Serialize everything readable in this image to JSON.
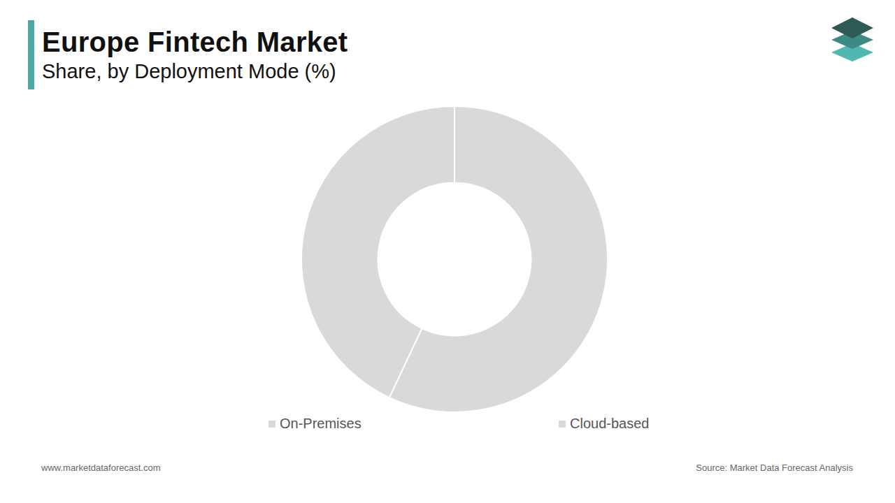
{
  "chart_data": {
    "type": "doughnut",
    "title": "Europe Fintech Market",
    "subtitle": "Share, by Deployment Mode (%)",
    "categories": [
      "On-Premises",
      "Cloud-based"
    ],
    "values": [
      57,
      43
    ],
    "colors": [
      "#d9d9d9",
      "#d9d9d9"
    ],
    "legend": "bottom",
    "data_labels": false
  },
  "website": "www.marketdataforecast.com",
  "source": "Source: Market Data Forecast Analysis"
}
